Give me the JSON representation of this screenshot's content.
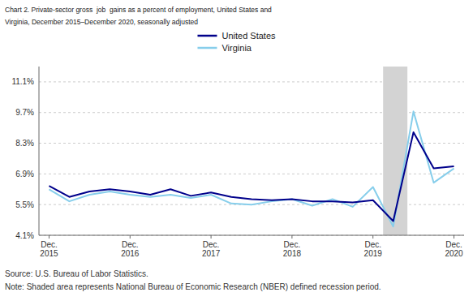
{
  "chart_data": {
    "type": "line",
    "title": "Chart 2. Private-sector gross  job  gains as a percent of employment, United States and\nVirginia, December 2015–December 2020, seasonally adjusted",
    "categories": [
      "Dec.\n2015",
      null,
      null,
      null,
      "Dec.\n2016",
      null,
      null,
      null,
      "Dec.\n2017",
      null,
      null,
      null,
      "Dec.\n2018",
      null,
      null,
      null,
      "Dec.\n2019",
      null,
      null,
      null,
      "Dec.\n2020"
    ],
    "series": [
      {
        "name": "United States",
        "color": "#00008B",
        "values": [
          6.35,
          5.85,
          6.1,
          6.2,
          6.1,
          5.95,
          6.2,
          5.9,
          6.05,
          5.85,
          5.75,
          5.7,
          5.75,
          5.65,
          5.65,
          5.6,
          5.7,
          4.75,
          8.8,
          7.15,
          7.25
        ]
      },
      {
        "name": "Virginia",
        "color": "#87CEEB",
        "values": [
          6.2,
          5.65,
          5.95,
          6.1,
          5.95,
          5.85,
          5.95,
          5.8,
          5.95,
          5.55,
          5.5,
          5.65,
          5.75,
          5.45,
          5.75,
          5.4,
          6.3,
          4.5,
          9.75,
          6.5,
          7.15
        ]
      }
    ],
    "ylim": [
      4.1,
      11.8
    ],
    "yticks": [
      {
        "value": 4.1,
        "label": "4.1%"
      },
      {
        "value": 5.5,
        "label": "5.5%"
      },
      {
        "value": 6.9,
        "label": "6.9%"
      },
      {
        "value": 8.3,
        "label": "8.3%"
      },
      {
        "value": 9.7,
        "label": "9.7%"
      },
      {
        "value": 11.1,
        "label": "11.1%"
      }
    ],
    "grid": true,
    "legend": "top",
    "shaded": {
      "start": 16.5,
      "end": 17.7,
      "color": "#D3D3D3"
    },
    "annotations": [
      "Source: U.S. Bureau of Labor Statistics.",
      "Note: Shaded area represents National Bureau of Economic Research (NBER) defined recession period."
    ]
  }
}
